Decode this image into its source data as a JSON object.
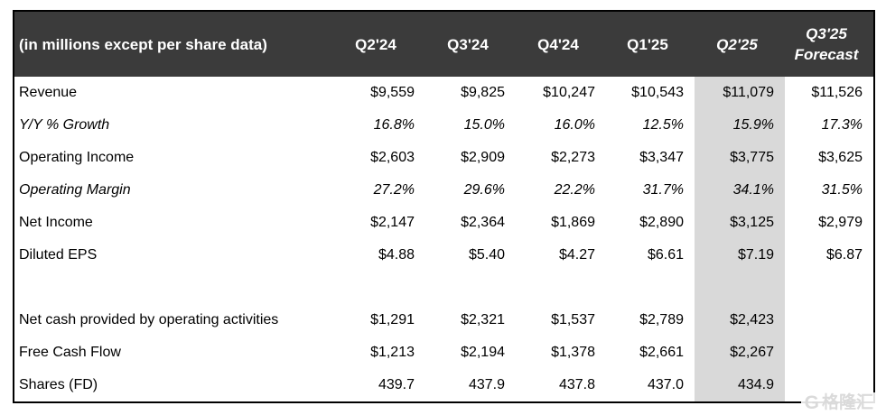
{
  "chart_data": {
    "type": "table",
    "unit_note": "(in millions except per share data)",
    "columns": [
      {
        "label": "Q2'24",
        "italic": false,
        "highlight": false
      },
      {
        "label": "Q3'24",
        "italic": false,
        "highlight": false
      },
      {
        "label": "Q4'24",
        "italic": false,
        "highlight": false
      },
      {
        "label": "Q1'25",
        "italic": false,
        "highlight": false
      },
      {
        "label": "Q2'25",
        "italic": true,
        "highlight": true
      },
      {
        "label": "Q3'25\nForecast",
        "italic": true,
        "highlight": false
      }
    ],
    "highlighted_column": "Q2'25",
    "rows": [
      {
        "label": "Revenue",
        "italic": false,
        "spacer": false,
        "values": [
          "$9,559",
          "$9,825",
          "$10,247",
          "$10,543",
          "$11,079",
          "$11,526"
        ]
      },
      {
        "label": "Y/Y % Growth",
        "italic": true,
        "spacer": false,
        "values": [
          "16.8%",
          "15.0%",
          "16.0%",
          "12.5%",
          "15.9%",
          "17.3%"
        ]
      },
      {
        "label": "Operating Income",
        "italic": false,
        "spacer": false,
        "values": [
          "$2,603",
          "$2,909",
          "$2,273",
          "$3,347",
          "$3,775",
          "$3,625"
        ]
      },
      {
        "label": "Operating Margin",
        "italic": true,
        "spacer": false,
        "values": [
          "27.2%",
          "29.6%",
          "22.2%",
          "31.7%",
          "34.1%",
          "31.5%"
        ]
      },
      {
        "label": "Net Income",
        "italic": false,
        "spacer": false,
        "values": [
          "$2,147",
          "$2,364",
          "$1,869",
          "$2,890",
          "$3,125",
          "$2,979"
        ]
      },
      {
        "label": "Diluted EPS",
        "italic": false,
        "spacer": false,
        "values": [
          "$4.88",
          "$5.40",
          "$4.27",
          "$6.61",
          "$7.19",
          "$6.87"
        ]
      },
      {
        "label": "",
        "italic": false,
        "spacer": true,
        "values": [
          "",
          "",
          "",
          "",
          "",
          ""
        ]
      },
      {
        "label": "Net cash provided by operating activities",
        "italic": false,
        "spacer": false,
        "values": [
          "$1,291",
          "$2,321",
          "$1,537",
          "$2,789",
          "$2,423",
          ""
        ]
      },
      {
        "label": "Free Cash Flow",
        "italic": false,
        "spacer": false,
        "values": [
          "$1,213",
          "$2,194",
          "$1,378",
          "$2,661",
          "$2,267",
          ""
        ]
      },
      {
        "label": "Shares (FD)",
        "italic": false,
        "spacer": false,
        "values": [
          "439.7",
          "437.9",
          "437.8",
          "437.0",
          "434.9",
          ""
        ]
      }
    ]
  },
  "watermark": {
    "logo_glyph": "G",
    "text": "格隆汇"
  },
  "colors": {
    "header_bg": "#3B3B3B",
    "header_text": "#FFFFFF",
    "highlight_bg": "#D9D9D9",
    "border": "#000000",
    "body_text": "#000000",
    "watermark": "#DADADA"
  }
}
